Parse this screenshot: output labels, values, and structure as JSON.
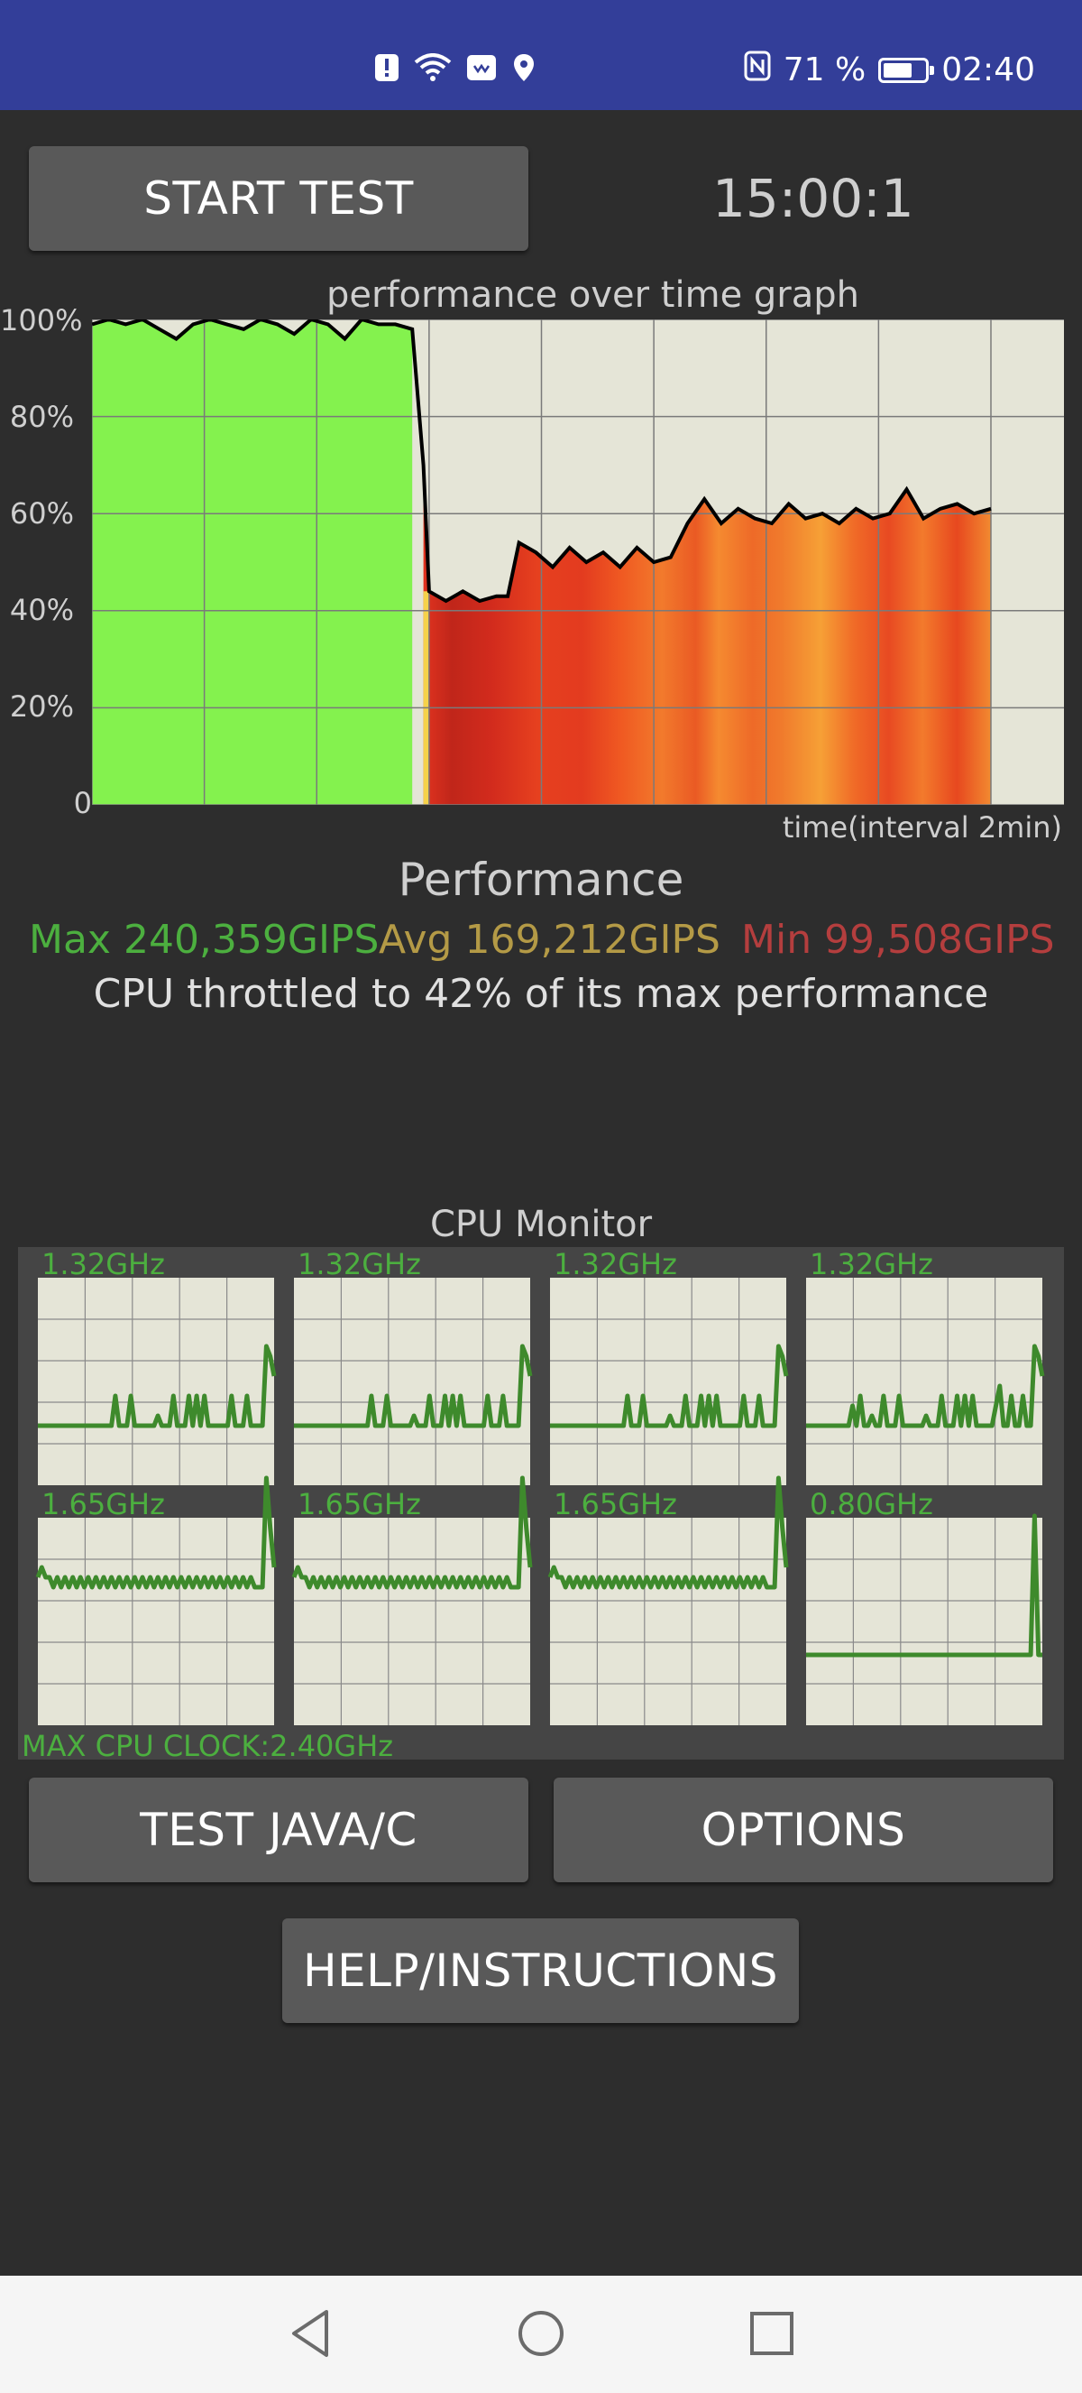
{
  "status_bar": {
    "battery_percent": "71 %",
    "battery_level": 0.71,
    "time": "02:40",
    "icons": [
      "alert-icon",
      "wifi-icon",
      "huawei-share-icon",
      "location-icon",
      "nfc-icon",
      "battery-icon"
    ]
  },
  "header": {
    "start_button": "START TEST",
    "timer": "15:00:1"
  },
  "graph": {
    "title": "performance over time graph",
    "x_label": "time(interval 2min)",
    "y_ticks": [
      "100%",
      "80%",
      "60%",
      "40%",
      "20%",
      "0"
    ]
  },
  "chart_data": {
    "type": "area",
    "title": "performance over time graph",
    "xlabel": "time(interval 2min)",
    "ylabel": "",
    "ylim": [
      0,
      100
    ],
    "x_range_min": [
      0,
      16
    ],
    "grid": true,
    "series": [
      {
        "values": [
          [
            0,
            99
          ],
          [
            0.3,
            100
          ],
          [
            0.6,
            99
          ],
          [
            0.9,
            100
          ],
          [
            1.2,
            98
          ],
          [
            1.5,
            96
          ],
          [
            1.8,
            99
          ],
          [
            2.1,
            100
          ],
          [
            2.4,
            99
          ],
          [
            2.7,
            98
          ],
          [
            3.0,
            100
          ],
          [
            3.3,
            99
          ],
          [
            3.6,
            97
          ],
          [
            3.9,
            100
          ],
          [
            4.2,
            99
          ],
          [
            4.5,
            96
          ],
          [
            4.8,
            100
          ],
          [
            5.1,
            99
          ],
          [
            5.4,
            99
          ],
          [
            5.7,
            98
          ],
          [
            5.9,
            70
          ],
          [
            6.0,
            44
          ],
          [
            6.3,
            42
          ],
          [
            6.6,
            44
          ],
          [
            6.9,
            42
          ],
          [
            7.2,
            43
          ],
          [
            7.4,
            43
          ],
          [
            7.6,
            54
          ],
          [
            7.9,
            52
          ],
          [
            8.2,
            49
          ],
          [
            8.5,
            53
          ],
          [
            8.8,
            50
          ],
          [
            9.1,
            52
          ],
          [
            9.4,
            49
          ],
          [
            9.7,
            53
          ],
          [
            10.0,
            50
          ],
          [
            10.3,
            51
          ],
          [
            10.6,
            58
          ],
          [
            10.9,
            63
          ],
          [
            11.2,
            58
          ],
          [
            11.5,
            61
          ],
          [
            11.8,
            59
          ],
          [
            12.1,
            58
          ],
          [
            12.4,
            62
          ],
          [
            12.7,
            59
          ],
          [
            13.0,
            60
          ],
          [
            13.3,
            58
          ],
          [
            13.6,
            61
          ],
          [
            13.9,
            59
          ],
          [
            14.2,
            60
          ],
          [
            14.5,
            65
          ],
          [
            14.8,
            59
          ],
          [
            15.1,
            61
          ],
          [
            15.4,
            62
          ],
          [
            15.7,
            60
          ],
          [
            16.0,
            61
          ]
        ]
      }
    ]
  },
  "performance": {
    "title": "Performance",
    "max": "Max 240,359GIPS",
    "avg": "Avg 169,212GIPS",
    "min": "Min 99,508GIPS",
    "throttle_text": "CPU throttled to 42% of its max performance",
    "colors": {
      "max": "#4caf3f",
      "avg": "#b49a46",
      "min": "#b43e3e"
    }
  },
  "cpu_monitor": {
    "title": "CPU Monitor",
    "cores": [
      {
        "freq": "1.32GHz",
        "trace": [
          0,
          0,
          0,
          0,
          0,
          0,
          0,
          0,
          0,
          0,
          0,
          0,
          0,
          0,
          0,
          0,
          0,
          0,
          0,
          0,
          3,
          0,
          0,
          0,
          3,
          0,
          0,
          0,
          0,
          0,
          0,
          1,
          0,
          0,
          0,
          3,
          0,
          0,
          0,
          3,
          0,
          3,
          0,
          3,
          0,
          0,
          0,
          0,
          0,
          0,
          3,
          0,
          0,
          0,
          3,
          0,
          0,
          0,
          0,
          8,
          7,
          5
        ]
      },
      {
        "freq": "1.32GHz",
        "trace": [
          0,
          0,
          0,
          0,
          0,
          0,
          0,
          0,
          0,
          0,
          0,
          0,
          0,
          0,
          0,
          0,
          0,
          0,
          0,
          0,
          3,
          0,
          0,
          0,
          3,
          0,
          0,
          0,
          0,
          0,
          0,
          1,
          0,
          0,
          0,
          3,
          0,
          0,
          0,
          3,
          0,
          3,
          0,
          3,
          0,
          0,
          0,
          0,
          0,
          0,
          3,
          0,
          0,
          0,
          3,
          0,
          0,
          0,
          0,
          8,
          7,
          5
        ]
      },
      {
        "freq": "1.32GHz",
        "trace": [
          0,
          0,
          0,
          0,
          0,
          0,
          0,
          0,
          0,
          0,
          0,
          0,
          0,
          0,
          0,
          0,
          0,
          0,
          0,
          0,
          3,
          0,
          0,
          0,
          3,
          0,
          0,
          0,
          0,
          0,
          0,
          1,
          0,
          0,
          0,
          3,
          0,
          0,
          0,
          3,
          0,
          3,
          0,
          3,
          0,
          0,
          0,
          0,
          0,
          0,
          3,
          0,
          0,
          0,
          3,
          0,
          0,
          0,
          0,
          8,
          7,
          5
        ]
      },
      {
        "freq": "1.32GHz",
        "trace": [
          0,
          0,
          0,
          0,
          0,
          0,
          0,
          0,
          0,
          0,
          0,
          0,
          2,
          0,
          3,
          0,
          0,
          1,
          0,
          0,
          3,
          0,
          0,
          0,
          3,
          0,
          0,
          0,
          0,
          0,
          0,
          1,
          0,
          0,
          0,
          3,
          0,
          0,
          0,
          3,
          0,
          3,
          0,
          3,
          0,
          0,
          0,
          0,
          0,
          2,
          4,
          0,
          0,
          3,
          0,
          0,
          3,
          0,
          0,
          8,
          7,
          5
        ]
      },
      {
        "freq": "1.65GHz",
        "trace": [
          2,
          3,
          2,
          2,
          1,
          2,
          1,
          2,
          1,
          2,
          1,
          2,
          1,
          2,
          1,
          2,
          1,
          2,
          1,
          2,
          1,
          2,
          1,
          2,
          1,
          2,
          1,
          2,
          1,
          2,
          1,
          2,
          1,
          2,
          1,
          2,
          1,
          2,
          1,
          2,
          1,
          2,
          1,
          2,
          1,
          2,
          1,
          2,
          1,
          2,
          1,
          2,
          1,
          2,
          1,
          2,
          1,
          1,
          1,
          12,
          7,
          3
        ]
      },
      {
        "freq": "1.65GHz",
        "trace": [
          2,
          3,
          2,
          2,
          1,
          2,
          1,
          2,
          1,
          2,
          1,
          2,
          1,
          2,
          1,
          2,
          1,
          2,
          1,
          2,
          1,
          2,
          1,
          2,
          1,
          2,
          1,
          2,
          1,
          2,
          1,
          2,
          1,
          2,
          1,
          2,
          1,
          2,
          1,
          2,
          1,
          2,
          1,
          2,
          1,
          2,
          1,
          2,
          1,
          2,
          1,
          2,
          1,
          2,
          1,
          2,
          1,
          1,
          1,
          12,
          7,
          3
        ]
      },
      {
        "freq": "1.65GHz",
        "trace": [
          2,
          3,
          2,
          2,
          1,
          2,
          1,
          2,
          1,
          2,
          1,
          2,
          1,
          2,
          1,
          2,
          1,
          2,
          1,
          2,
          1,
          2,
          1,
          2,
          1,
          2,
          1,
          2,
          1,
          2,
          1,
          2,
          1,
          2,
          1,
          2,
          1,
          2,
          1,
          2,
          1,
          2,
          1,
          2,
          1,
          2,
          1,
          2,
          1,
          2,
          1,
          2,
          1,
          2,
          1,
          2,
          1,
          1,
          1,
          12,
          7,
          3
        ]
      },
      {
        "freq": "0.80GHz",
        "trace": [
          0,
          0,
          0,
          0,
          0,
          0,
          0,
          0,
          0,
          0,
          0,
          0,
          0,
          0,
          0,
          0,
          0,
          0,
          0,
          0,
          0,
          0,
          0,
          0,
          0,
          0,
          0,
          0,
          0,
          0,
          0,
          0,
          0,
          0,
          0,
          0,
          0,
          0,
          0,
          0,
          0,
          0,
          0,
          0,
          0,
          0,
          0,
          0,
          0,
          0,
          0,
          0,
          0,
          0,
          0,
          0,
          0,
          0,
          0,
          14,
          0,
          0
        ]
      }
    ],
    "max_clock": "MAX CPU CLOCK:2.40GHz"
  },
  "buttons": {
    "test_java": "TEST JAVA/C",
    "options": "OPTIONS",
    "help": "HELP/INSTRUCTIONS"
  },
  "nav": {
    "icons": [
      "back-icon",
      "home-icon",
      "recents-icon"
    ]
  }
}
